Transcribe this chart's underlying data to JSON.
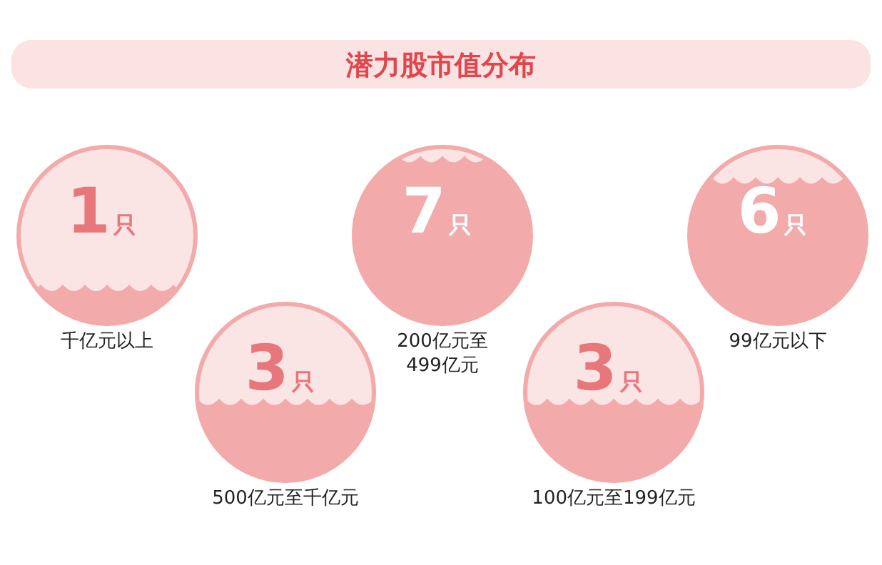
{
  "chart_data": {
    "type": "other",
    "title": "潜力股市值分布",
    "categories": [
      "千亿元以上",
      "500亿元至千亿元",
      "200亿元至\n499亿元",
      "100亿元至199亿元",
      "99亿元以下"
    ],
    "values": [
      1,
      3,
      7,
      3,
      6
    ],
    "value_labels": [
      "1只",
      "3只",
      "7只",
      "3只",
      "6只"
    ],
    "color": "#f2aaaa"
  }
}
